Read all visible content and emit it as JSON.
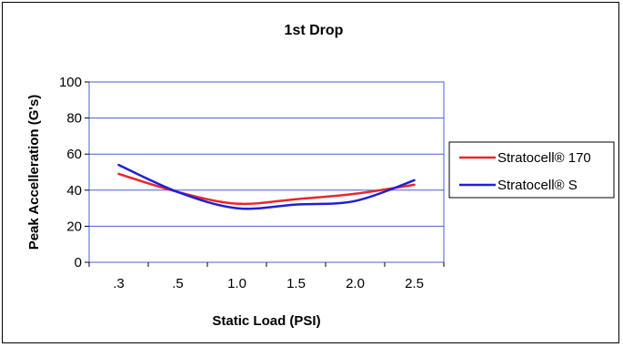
{
  "chart_data": {
    "type": "line",
    "title": "1st Drop",
    "xlabel": "Static Load (PSI)",
    "ylabel": "Peak Accelleration (G's)",
    "categories": [
      ".3",
      ".5",
      "1.0",
      "1.5",
      "2.0",
      "2.5"
    ],
    "ylim": [
      0,
      100
    ],
    "yticks": [
      "0",
      "20",
      "40",
      "60",
      "80",
      "100"
    ],
    "grid": true,
    "legend_position": "right",
    "series": [
      {
        "name": "Stratocell® 170",
        "color": "#e8262b",
        "values": [
          49,
          39,
          32.5,
          35,
          38,
          43
        ]
      },
      {
        "name": "Stratocell® S",
        "color": "#1f1fd6",
        "values": [
          54,
          39,
          30,
          32,
          34,
          45.5
        ]
      }
    ]
  }
}
